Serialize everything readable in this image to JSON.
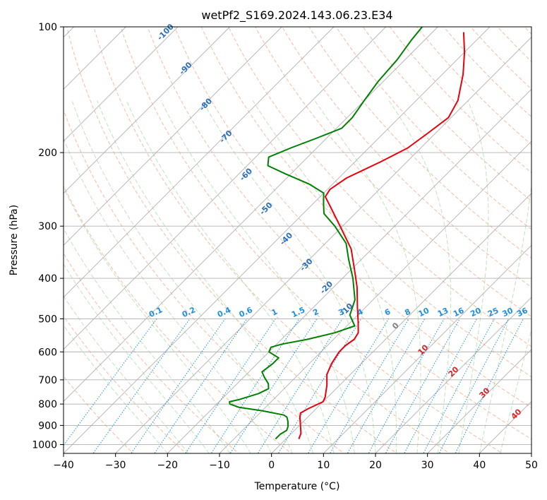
{
  "chart_data": {
    "type": "line",
    "title": "wetPf2_S169.2024.143.06.23.E34",
    "xlabel": "Temperature (°C)",
    "ylabel": "Pressure (hPa)",
    "xlim": [
      -40,
      50
    ],
    "ylim": [
      1050,
      100
    ],
    "y_scale": "log",
    "grid": true,
    "x_ticks": [
      -40,
      -30,
      -20,
      -10,
      0,
      10,
      20,
      30,
      40,
      50
    ],
    "x_tick_labels": [
      "−40",
      "−30",
      "−20",
      "−10",
      "0",
      "10",
      "20",
      "30",
      "40",
      "50"
    ],
    "y_ticks": [
      100,
      200,
      300,
      400,
      500,
      600,
      700,
      800,
      900,
      1000
    ],
    "y_tick_labels": [
      "100",
      "200",
      "300",
      "400",
      "500",
      "600",
      "700",
      "800",
      "900",
      "1000"
    ],
    "skew_angle_deg": 45,
    "series": [
      {
        "role": "temperature",
        "color": "#e8000b",
        "points": [
          {
            "p": 970,
            "t": 2.5
          },
          {
            "p": 940,
            "t": 1.8
          },
          {
            "p": 900,
            "t": 0.2
          },
          {
            "p": 860,
            "t": -1.5
          },
          {
            "p": 840,
            "t": -2.2
          },
          {
            "p": 820,
            "t": -1.5
          },
          {
            "p": 790,
            "t": 0.0
          },
          {
            "p": 770,
            "t": -0.5
          },
          {
            "p": 720,
            "t": -2.5
          },
          {
            "p": 680,
            "t": -4.5
          },
          {
            "p": 640,
            "t": -5.7
          },
          {
            "p": 600,
            "t": -6.5
          },
          {
            "p": 580,
            "t": -6.5
          },
          {
            "p": 560,
            "t": -6.0
          },
          {
            "p": 540,
            "t": -6.5
          },
          {
            "p": 510,
            "t": -8.5
          },
          {
            "p": 470,
            "t": -11.5
          },
          {
            "p": 420,
            "t": -15.5
          },
          {
            "p": 380,
            "t": -19.5
          },
          {
            "p": 340,
            "t": -24.0
          },
          {
            "p": 300,
            "t": -30.5
          },
          {
            "p": 270,
            "t": -36.0
          },
          {
            "p": 255,
            "t": -39.0
          },
          {
            "p": 245,
            "t": -39.5
          },
          {
            "p": 230,
            "t": -38.5
          },
          {
            "p": 210,
            "t": -35.0
          },
          {
            "p": 195,
            "t": -32.5
          },
          {
            "p": 180,
            "t": -31.5
          },
          {
            "p": 165,
            "t": -30.5
          },
          {
            "p": 150,
            "t": -32.0
          },
          {
            "p": 130,
            "t": -36.0
          },
          {
            "p": 115,
            "t": -40.0
          },
          {
            "p": 103,
            "t": -44.0
          }
        ]
      },
      {
        "role": "dewpoint",
        "color": "#008000",
        "points": [
          {
            "p": 970,
            "t": -2.0
          },
          {
            "p": 945,
            "t": -2.0
          },
          {
            "p": 925,
            "t": -1.5
          },
          {
            "p": 905,
            "t": -2.0
          },
          {
            "p": 880,
            "t": -3.0
          },
          {
            "p": 860,
            "t": -4.0
          },
          {
            "p": 850,
            "t": -5.0
          },
          {
            "p": 830,
            "t": -10.0
          },
          {
            "p": 815,
            "t": -15.0
          },
          {
            "p": 800,
            "t": -17.5
          },
          {
            "p": 790,
            "t": -18.0
          },
          {
            "p": 780,
            "t": -16.5
          },
          {
            "p": 755,
            "t": -14.0
          },
          {
            "p": 735,
            "t": -13.0
          },
          {
            "p": 715,
            "t": -14.0
          },
          {
            "p": 690,
            "t": -16.0
          },
          {
            "p": 670,
            "t": -17.5
          },
          {
            "p": 640,
            "t": -17.0
          },
          {
            "p": 620,
            "t": -17.0
          },
          {
            "p": 600,
            "t": -20.0
          },
          {
            "p": 585,
            "t": -20.5
          },
          {
            "p": 575,
            "t": -19.0
          },
          {
            "p": 560,
            "t": -15.0
          },
          {
            "p": 540,
            "t": -11.0
          },
          {
            "p": 520,
            "t": -8.5
          },
          {
            "p": 490,
            "t": -11.5
          },
          {
            "p": 450,
            "t": -13.5
          },
          {
            "p": 400,
            "t": -18.0
          },
          {
            "p": 360,
            "t": -22.5
          },
          {
            "p": 330,
            "t": -26.0
          },
          {
            "p": 300,
            "t": -31.5
          },
          {
            "p": 280,
            "t": -36.0
          },
          {
            "p": 265,
            "t": -38.0
          },
          {
            "p": 250,
            "t": -40.0
          },
          {
            "p": 238,
            "t": -44.5
          },
          {
            "p": 225,
            "t": -51.0
          },
          {
            "p": 215,
            "t": -56.0
          },
          {
            "p": 205,
            "t": -57.5
          },
          {
            "p": 195,
            "t": -55.0
          },
          {
            "p": 185,
            "t": -52.0
          },
          {
            "p": 175,
            "t": -49.0
          },
          {
            "p": 165,
            "t": -49.0
          },
          {
            "p": 150,
            "t": -50.0
          },
          {
            "p": 135,
            "t": -51.0
          },
          {
            "p": 120,
            "t": -51.5
          },
          {
            "p": 108,
            "t": -52.5
          },
          {
            "p": 100,
            "t": -53.0
          }
        ]
      }
    ],
    "dry_adiabat_labels": [
      "-100",
      "-90",
      "-80",
      "-70",
      "-60",
      "-50",
      "-40",
      "-30",
      "-20",
      "-10"
    ],
    "mixing_ratio_labels": [
      "0.1",
      "0.2",
      "0.4",
      "0.6",
      "1",
      "1.5",
      "2",
      "3",
      "4",
      "6",
      "8",
      "10",
      "13",
      "16",
      "20",
      "25",
      "30",
      "36"
    ],
    "moist_adiabat_labels": [
      "0",
      "10",
      "20",
      "30",
      "40"
    ],
    "colors": {
      "isotherm": "#b0b0b0",
      "dry_adiabat": "#f4a582",
      "moist_adiabat": "#a6d7a0",
      "mixing_ratio": "#1f8fe0",
      "dry_label": "#2a6ebb",
      "moist_label": "#d62728",
      "zero_label": "#808080"
    }
  }
}
